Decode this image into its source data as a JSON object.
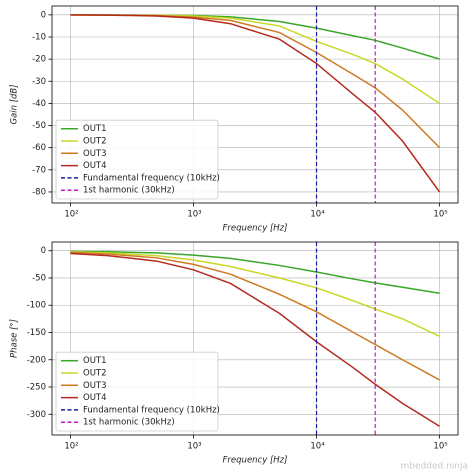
{
  "chart_data": [
    {
      "type": "line",
      "xlabel": "Frequency [Hz]",
      "ylabel": "Gain [dB]",
      "xscale": "log",
      "grid": true,
      "legend": "lower left",
      "x": [
        100,
        200,
        500,
        1000,
        2000,
        5000,
        10000,
        20000,
        30000,
        50000,
        100000
      ],
      "xlim": [
        70.8,
        141254
      ],
      "ylim": [
        -85,
        4
      ],
      "xticks": [
        {
          "value": 100,
          "label": "10²"
        },
        {
          "value": 1000,
          "label": "10³"
        },
        {
          "value": 10000,
          "label": "10⁴"
        },
        {
          "value": 100000,
          "label": "10⁵"
        }
      ],
      "yticks": [
        0,
        -10,
        -20,
        -30,
        -40,
        -50,
        -60,
        -70,
        -80
      ],
      "series": [
        {
          "name": "OUT1",
          "color": "#3aa62a",
          "values": [
            0,
            0,
            -0.1,
            -0.3,
            -0.9,
            -3,
            -6,
            -9.5,
            -11.5,
            -15,
            -20
          ]
        },
        {
          "name": "OUT2",
          "color": "#c9d826",
          "values": [
            0,
            -0.1,
            -0.2,
            -0.5,
            -1.5,
            -5,
            -12,
            -18,
            -22,
            -29,
            -40
          ]
        },
        {
          "name": "OUT3",
          "color": "#cc7a22",
          "values": [
            0,
            -0.1,
            -0.3,
            -1,
            -2.5,
            -8,
            -17,
            -27,
            -33,
            -43,
            -60
          ]
        },
        {
          "name": "OUT4",
          "color": "#b52a1e",
          "values": [
            0,
            -0.1,
            -0.5,
            -1.5,
            -4,
            -11,
            -22,
            -36,
            -44,
            -57,
            -80
          ]
        }
      ],
      "vlines": [
        {
          "name": "Fundamental frequency (10kHz)",
          "color": "#1a1aa8",
          "x": 10000
        },
        {
          "name": "1st harmonic (30kHz)",
          "color": "#c21bc2",
          "x": 30000
        }
      ]
    },
    {
      "type": "line",
      "xlabel": "Frequency [Hz]",
      "ylabel": "Phase [°]",
      "xscale": "log",
      "grid": true,
      "legend": "lower left",
      "x": [
        100,
        200,
        500,
        1000,
        2000,
        5000,
        10000,
        20000,
        30000,
        50000,
        100000
      ],
      "xlim": [
        70.8,
        141254
      ],
      "ylim": [
        -338,
        16
      ],
      "xticks": [
        {
          "value": 100,
          "label": "10²"
        },
        {
          "value": 1000,
          "label": "10³"
        },
        {
          "value": 10000,
          "label": "10⁴"
        },
        {
          "value": 100000,
          "label": "10⁵"
        }
      ],
      "yticks": [
        0,
        -50,
        -100,
        -150,
        -200,
        -250,
        -300
      ],
      "series": [
        {
          "name": "OUT1",
          "color": "#3aa62a",
          "values": [
            -1,
            -2,
            -4,
            -8,
            -14,
            -27,
            -39,
            -52,
            -59,
            -67,
            -78
          ]
        },
        {
          "name": "OUT2",
          "color": "#c9d826",
          "values": [
            -2,
            -4,
            -9,
            -17,
            -29,
            -50,
            -68,
            -92,
            -107,
            -125,
            -157
          ]
        },
        {
          "name": "OUT3",
          "color": "#cc7a22",
          "values": [
            -3,
            -6,
            -13,
            -25,
            -43,
            -80,
            -112,
            -150,
            -172,
            -200,
            -237
          ]
        },
        {
          "name": "OUT4",
          "color": "#b52a1e",
          "values": [
            -5,
            -9,
            -19,
            -35,
            -60,
            -115,
            -167,
            -215,
            -245,
            -280,
            -322
          ]
        }
      ],
      "vlines": [
        {
          "name": "Fundamental frequency (10kHz)",
          "color": "#1a1aa8",
          "x": 10000
        },
        {
          "name": "1st harmonic (30kHz)",
          "color": "#c21bc2",
          "x": 30000
        }
      ]
    }
  ],
  "watermark": "mbedded.ninja"
}
